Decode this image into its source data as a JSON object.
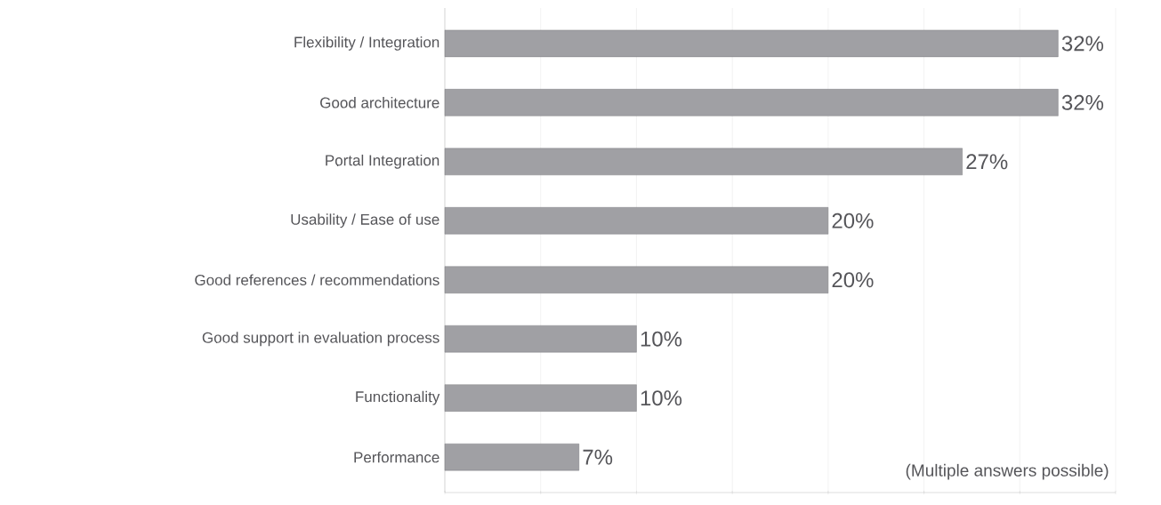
{
  "chart_data": {
    "type": "bar",
    "orientation": "horizontal",
    "categories": [
      "Flexibility / Integration",
      "Good architecture",
      "Portal Integration",
      "Usability / Ease of use",
      "Good references / recommendations",
      "Good support in evaluation process",
      "Functionality",
      "Performance"
    ],
    "values": [
      32,
      32,
      27,
      20,
      20,
      10,
      10,
      7
    ],
    "value_labels": [
      "32%",
      "32%",
      "27%",
      "20%",
      "20%",
      "10%",
      "10%",
      "7%"
    ],
    "color": "#a0a0a4",
    "xlim": [
      0,
      35
    ],
    "xticks": [
      {
        "value": 0,
        "label": null
      },
      {
        "value": 5,
        "label": null
      },
      {
        "value": 10,
        "label": null
      },
      {
        "value": 15,
        "label": null
      },
      {
        "value": 20,
        "label": null
      },
      {
        "value": 25,
        "label": null
      },
      {
        "value": 30,
        "label": null
      },
      {
        "value": 35,
        "label": null
      }
    ],
    "grid": "x",
    "annotations": [
      "(Multiple answers possible)"
    ]
  }
}
